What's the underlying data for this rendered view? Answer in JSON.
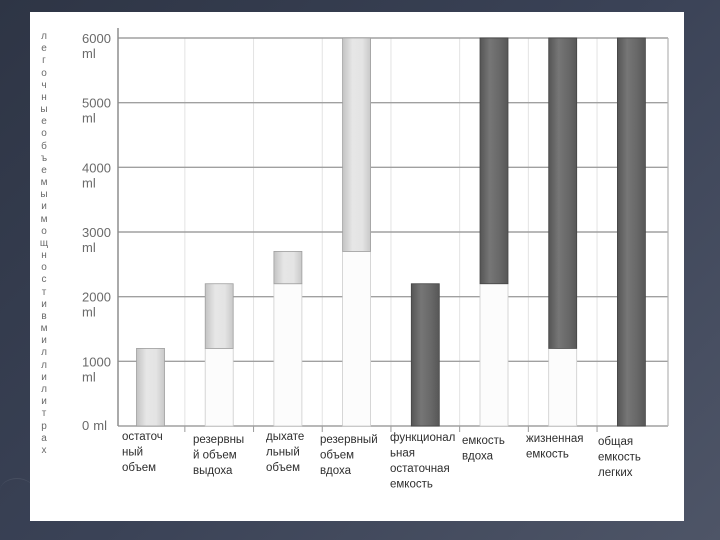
{
  "theme": {
    "slide_background": "#3a4256",
    "panel_background": "#ffffff",
    "grid_color": "#a0a0a0"
  },
  "chart_data": {
    "type": "bar",
    "ylabel": "легочные объемы и мощности в миллилитрах",
    "yunit": "ml",
    "ylim": [
      0,
      6000
    ],
    "yticks": [
      0,
      1000,
      2000,
      3000,
      4000,
      5000,
      6000
    ],
    "grid": true,
    "bars": [
      {
        "label_lines": [
          "остаточ",
          "ный",
          "объем"
        ],
        "from": 0,
        "to": 1200,
        "color": "#e3e3e3"
      },
      {
        "label_lines": [
          "резервны",
          "й объем",
          "выдоха"
        ],
        "from": 1200,
        "to": 2200,
        "color": "#e3e3e3"
      },
      {
        "label_lines": [
          "дыхате",
          "льный",
          "объем"
        ],
        "from": 2200,
        "to": 2700,
        "color": "#e3e3e3"
      },
      {
        "label_lines": [
          "резервный",
          "объем",
          "вдоха"
        ],
        "from": 2700,
        "to": 6000,
        "color": "#e3e3e3"
      },
      {
        "label_lines": [
          "функционал",
          "ьная",
          "остаточная",
          "емкость"
        ],
        "from": 0,
        "to": 2200,
        "color": "#636363"
      },
      {
        "label_lines": [
          "емкость",
          "вдоха"
        ],
        "from": 2200,
        "to": 6000,
        "color": "#636363"
      },
      {
        "label_lines": [
          "жизненная",
          "емкость"
        ],
        "from": 1200,
        "to": 6000,
        "color": "#636363"
      },
      {
        "label_lines": [
          "общая",
          "емкость",
          "легких"
        ],
        "from": 0,
        "to": 6000,
        "color": "#636363"
      }
    ]
  }
}
